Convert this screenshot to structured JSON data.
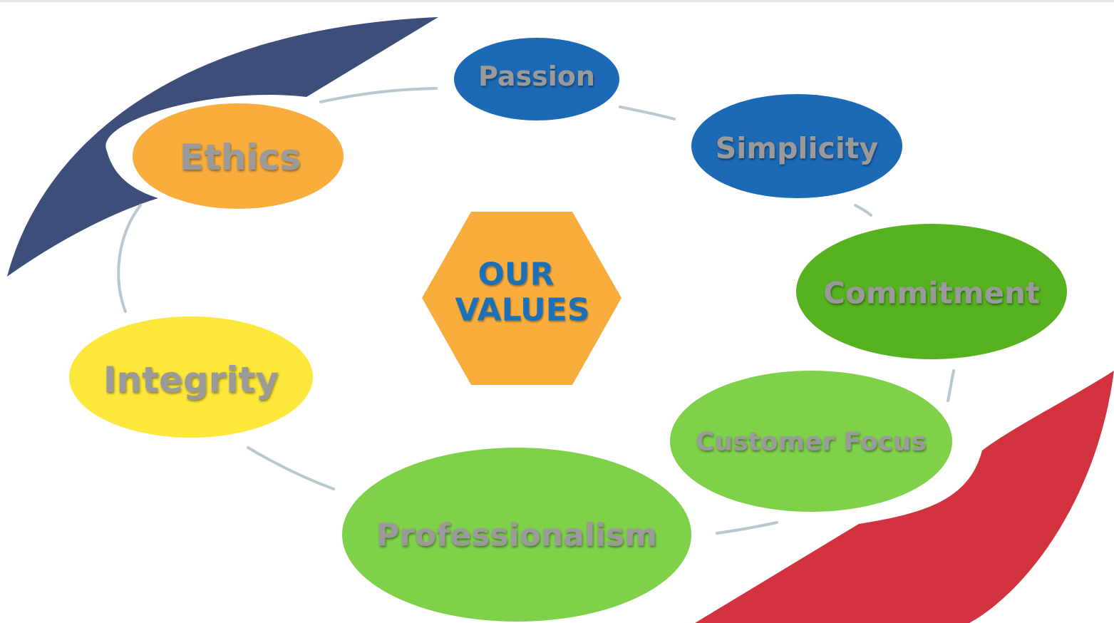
{
  "center": {
    "line1": "OUR",
    "line2": "VALUES",
    "fill": "#f9ad3c",
    "text_color": "#1f6fb8"
  },
  "values": [
    {
      "id": "passion",
      "label": "Passion",
      "color": "#1c6ab6"
    },
    {
      "id": "simplicity",
      "label": "Simplicity",
      "color": "#1c6ab6"
    },
    {
      "id": "commitment",
      "label": "Commitment",
      "color": "#56b21e"
    },
    {
      "id": "customer-focus",
      "label": "Customer Focus",
      "color": "#7fd14a"
    },
    {
      "id": "professionalism",
      "label": "Professionalism",
      "color": "#7fd14a"
    },
    {
      "id": "integrity",
      "label": "Integrity",
      "color": "#fde73a"
    },
    {
      "id": "ethics",
      "label": "Ethics",
      "color": "#f9ad3c"
    }
  ],
  "decor": {
    "navy_swoosh": "#3d4e7a",
    "red_swoosh": "#d3323f",
    "connector": "#b8c8cf",
    "label_text": "#9a9a9a"
  }
}
